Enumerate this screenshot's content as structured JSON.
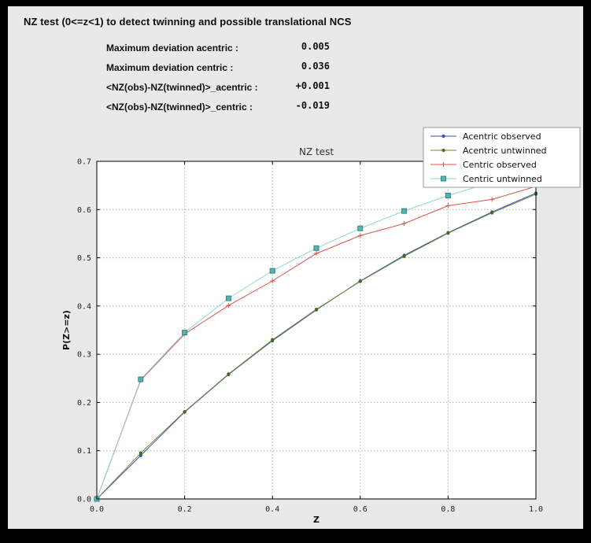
{
  "window": {
    "frame_color": "#000000",
    "panel_bg": "#e9e9e9"
  },
  "header": {
    "title": "NZ test (0<=z<1) to detect twinning and possible translational NCS"
  },
  "stats": {
    "rows": [
      {
        "label": "Maximum deviation acentric :",
        "value": "0.005"
      },
      {
        "label": "Maximum deviation centric :",
        "value": "0.036"
      },
      {
        "label": "<NZ(obs)-NZ(twinned)>_acentric :",
        "value": "+0.001"
      },
      {
        "label": "<NZ(obs)-NZ(twinned)>_centric :",
        "value": "-0.019"
      }
    ]
  },
  "chart_data": {
    "type": "line",
    "title": "NZ test",
    "xlabel": "Z",
    "ylabel": "P(Z>=z)",
    "xlim": [
      0.0,
      1.0
    ],
    "ylim": [
      0.0,
      0.7
    ],
    "grid": true,
    "legend_position": "top-right",
    "plot_bg": "#ffffff",
    "grid_color": "#b3b3b3",
    "spine_color": "#000000",
    "xticks": [
      0.0,
      0.2,
      0.4,
      0.6,
      0.8,
      1.0
    ],
    "xtick_labels": [
      "0.0",
      "0.2",
      "0.4",
      "0.6",
      "0.8",
      "1.0"
    ],
    "yticks": [
      0.0,
      0.1,
      0.2,
      0.3,
      0.4,
      0.5,
      0.6,
      0.7
    ],
    "ytick_labels": [
      "0.0",
      "0.1",
      "0.2",
      "0.3",
      "0.4",
      "0.5",
      "0.6",
      "0.7"
    ],
    "x": [
      0.0,
      0.1,
      0.2,
      0.3,
      0.4,
      0.5,
      0.6,
      0.7,
      0.8,
      0.9,
      1.0
    ],
    "series": [
      {
        "name": "Acentric observed",
        "line_color": "#3b4cc0",
        "marker": "dot",
        "marker_color": "#3b4cc0",
        "marker_edge": "#3b4cc0",
        "values": [
          0.0,
          0.09,
          0.18,
          0.258,
          0.328,
          0.392,
          0.452,
          0.505,
          0.552,
          0.595,
          0.634
        ]
      },
      {
        "name": "Acentric untwinned",
        "line_color": "#6b8e23",
        "marker": "dot",
        "marker_color": "#4c6a14",
        "marker_edge": "#4c6a14",
        "values": [
          0.0,
          0.095,
          0.181,
          0.259,
          0.33,
          0.393,
          0.451,
          0.503,
          0.551,
          0.593,
          0.632
        ]
      },
      {
        "name": "Centric observed",
        "line_color": "#d9544d",
        "marker": "plus",
        "marker_color": "#d9544d",
        "marker_edge": "#d9544d",
        "values": [
          0.0,
          0.246,
          0.342,
          0.401,
          0.452,
          0.509,
          0.546,
          0.571,
          0.608,
          0.621,
          0.648
        ]
      },
      {
        "name": "Centric untwinned",
        "line_color": "#8fd6d6",
        "marker": "square",
        "marker_color": "#56b4b4",
        "marker_edge": "#38827d",
        "values": [
          0.0,
          0.248,
          0.345,
          0.416,
          0.473,
          0.52,
          0.561,
          0.597,
          0.629,
          0.657,
          0.683
        ]
      }
    ]
  }
}
